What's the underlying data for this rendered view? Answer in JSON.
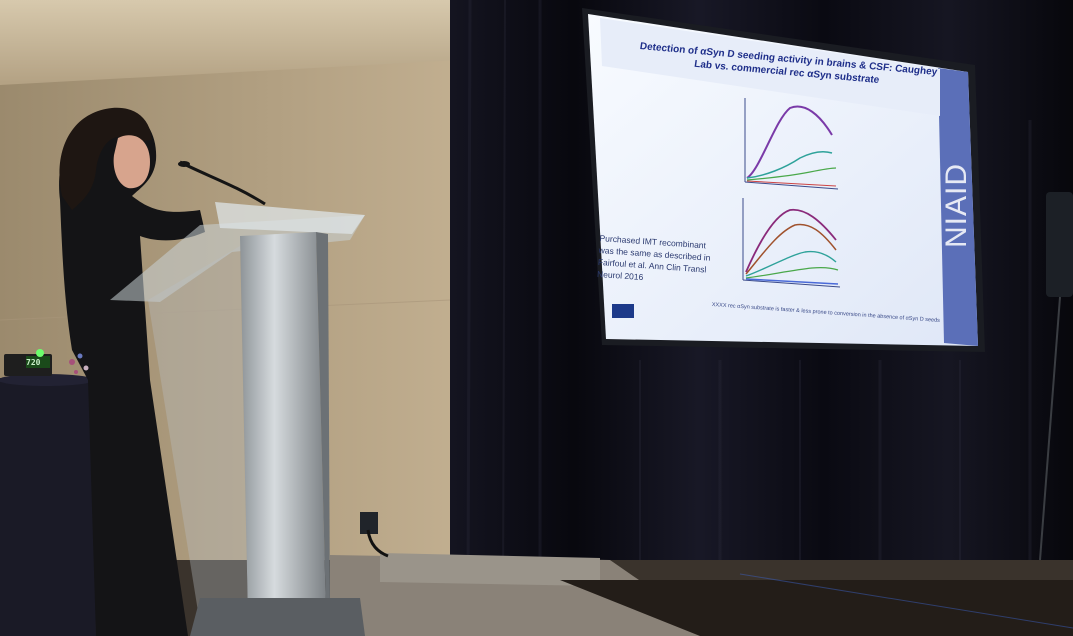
{
  "scene": {
    "description_free": true,
    "slide": {
      "title": "Detection of αSyn D seeding activity in brains & CSF: Caughey Lab vs. commercial rec αSyn substrate",
      "side_note": "Purchased IMT recombinant was the same as described in Fairfoul et al. Ann Clin Transl Neurol 2016",
      "footer": "XXXX rec αSyn substrate is faster & less prone to conversion in the absence of αSyn D seeds",
      "logo_text": "NIAID",
      "nih_badge": "NIH",
      "accent_color": "#1f2f8a",
      "background_color": "#eef2fb",
      "side_bar_color": "#5b6fb8"
    },
    "device_display": "720",
    "colors": {
      "wall": "#bda98a",
      "curtain": "#0c0c14",
      "podium_glass": "#cfd6da",
      "podium_metal": "#a7acb0",
      "floor": "#3a332c",
      "ceiling_light": "#fff4dc"
    }
  }
}
